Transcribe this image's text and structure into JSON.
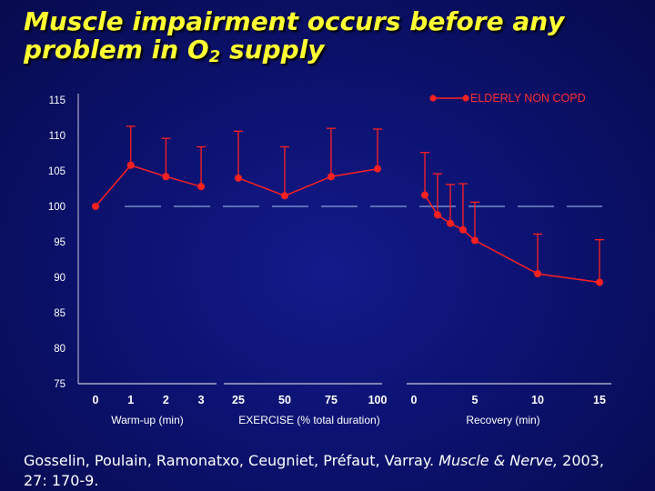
{
  "slide": {
    "title_line1": "Muscle impairment occurs before any",
    "title_line2_pre": "problem in O",
    "title_line2_sub": "2",
    "title_line2_post": " supply",
    "citation_authors": "Gosselin, Poulain, Ramonatxo, Ceugniet, Préfaut, Varray.",
    "citation_journal": "Muscle & Nerve,",
    "citation_rest1": " 2003,",
    "citation_rest2": "27: 170-9."
  },
  "colors": {
    "background": "#0c1270",
    "title": "#ffff33",
    "series": "#ff2020",
    "reference_line": "#8aa4d8",
    "axis_text": "#ffffff",
    "legend_text": "#ff3030"
  },
  "chart_data": {
    "type": "line",
    "ylim": [
      75,
      115
    ],
    "yticks": [
      75,
      80,
      85,
      90,
      95,
      100,
      105,
      110,
      115
    ],
    "reference_value": 100,
    "legend_position": "top-right",
    "grid": false,
    "series": [
      {
        "name": "ELDERLY NON COPD"
      }
    ],
    "segments": [
      {
        "xlabel": "Warm-up (min)",
        "ticks": [
          "0",
          "1",
          "2",
          "3"
        ],
        "x": [
          0,
          1,
          2,
          3
        ],
        "y": [
          100,
          105.8,
          104.2,
          102.8
        ],
        "err_upper": [
          null,
          111.3,
          109.6,
          108.4
        ]
      },
      {
        "xlabel": "EXERCISE (% total duration)",
        "ticks": [
          "25",
          "50",
          "75",
          "100"
        ],
        "x": [
          25,
          50,
          75,
          100
        ],
        "y": [
          104.0,
          101.5,
          104.2,
          105.3
        ],
        "err_upper": [
          110.6,
          108.4,
          111.0,
          110.9
        ]
      },
      {
        "xlabel": "Recovery (min)",
        "ticks": [
          "0",
          "5",
          "10",
          "15"
        ],
        "tick_values": [
          0,
          5,
          10,
          15
        ],
        "x": [
          1,
          2,
          3,
          4,
          5,
          10,
          15
        ],
        "y": [
          101.6,
          98.8,
          97.6,
          96.7,
          95.2,
          90.5,
          89.3
        ],
        "err_upper": [
          107.6,
          104.6,
          103.1,
          103.2,
          100.6,
          96.1,
          95.3
        ]
      }
    ]
  }
}
